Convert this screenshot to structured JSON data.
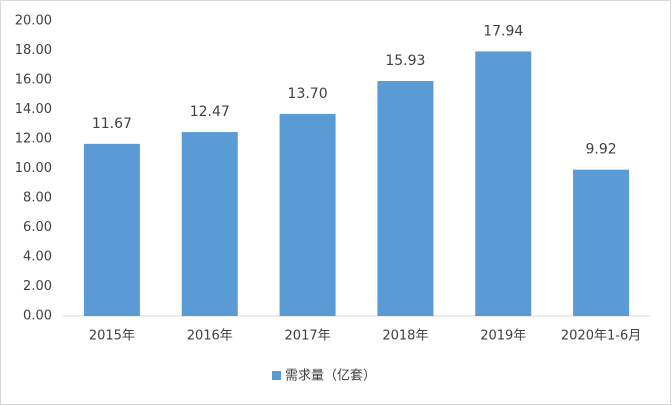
{
  "chart_data": {
    "type": "bar",
    "categories": [
      "2015年",
      "2016年",
      "2017年",
      "2018年",
      "2019年",
      "2020年1-6月"
    ],
    "series": [
      {
        "name": "需求量（亿套）",
        "color": "#5b9bd5",
        "values": [
          11.67,
          12.47,
          13.7,
          15.93,
          17.94,
          9.92
        ],
        "value_labels": [
          "11.67",
          "12.47",
          "13.70",
          "15.93",
          "17.94",
          "9.92"
        ]
      }
    ],
    "ylim": [
      0,
      20
    ],
    "yticks": [
      {
        "value": 0,
        "label": "0.00"
      },
      {
        "value": 2,
        "label": "2.00"
      },
      {
        "value": 4,
        "label": "4.00"
      },
      {
        "value": 6,
        "label": "6.00"
      },
      {
        "value": 8,
        "label": "8.00"
      },
      {
        "value": 10,
        "label": "10.00"
      },
      {
        "value": 12,
        "label": "12.00"
      },
      {
        "value": 14,
        "label": "14.00"
      },
      {
        "value": 16,
        "label": "16.00"
      },
      {
        "value": 18,
        "label": "18.00"
      },
      {
        "value": 20,
        "label": "20.00"
      }
    ],
    "legend": "bottom",
    "grid": false
  }
}
